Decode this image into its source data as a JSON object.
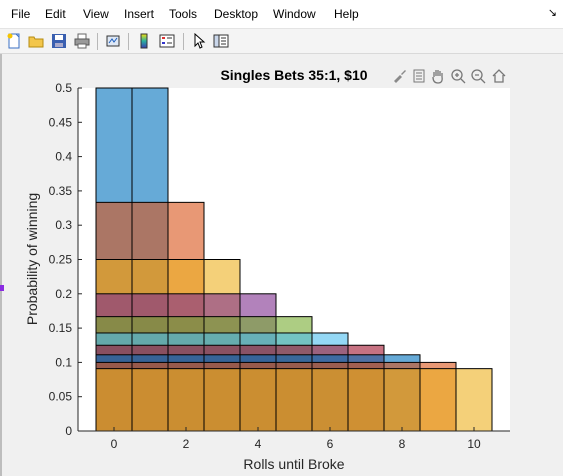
{
  "menu": {
    "items": [
      "File",
      "Edit",
      "View",
      "Insert",
      "Tools",
      "Desktop",
      "Window",
      "Help"
    ],
    "arrow": "↘"
  },
  "toolbar": {
    "icons": [
      "new-figure-icon",
      "open-file-icon",
      "save-icon",
      "print-icon",
      "link-plot-icon",
      "insert-colorbar-icon",
      "insert-legend-icon",
      "pointer-icon",
      "property-inspector-icon"
    ]
  },
  "axes_toolbar": {
    "icons": [
      "brush-icon",
      "data-tips-icon",
      "pan-icon",
      "zoom-in-icon",
      "zoom-out-icon",
      "home-icon"
    ]
  },
  "chart_data": {
    "type": "bar",
    "title": "Singles Bets 35:1, $10",
    "xlabel": "Rolls until Broke",
    "ylabel": "Probability of winning",
    "xlim": [
      -1,
      11
    ],
    "ylim": [
      0,
      0.5
    ],
    "xticks": [
      0,
      2,
      4,
      6,
      8,
      10
    ],
    "yticks": [
      0,
      0.05,
      0.1,
      0.15,
      0.2,
      0.25,
      0.3,
      0.35,
      0.4,
      0.45,
      0.5
    ],
    "ytick_labels": [
      "0",
      "0.05",
      "0.1",
      "0.15",
      "0.2",
      "0.25",
      "0.3",
      "0.35",
      "0.4",
      "0.45",
      "0.5"
    ],
    "bar_width": 1,
    "face_alpha": 0.6,
    "grid": false,
    "legend": "none",
    "series": [
      {
        "x": [
          0,
          1
        ],
        "values": [
          0.5,
          0.5
        ],
        "color": "#0072BD"
      },
      {
        "x": [
          0,
          1,
          2
        ],
        "values": [
          0.3333,
          0.3333,
          0.3333
        ],
        "color": "#D95319"
      },
      {
        "x": [
          0,
          1,
          2,
          3
        ],
        "values": [
          0.25,
          0.25,
          0.25,
          0.25
        ],
        "color": "#EDB120"
      },
      {
        "x": [
          0,
          1,
          2,
          3,
          4
        ],
        "values": [
          0.2,
          0.2,
          0.2,
          0.2,
          0.2
        ],
        "color": "#7E2F8E"
      },
      {
        "x": [
          0,
          1,
          2,
          3,
          4,
          5
        ],
        "values": [
          0.1667,
          0.1667,
          0.1667,
          0.1667,
          0.1667,
          0.1667
        ],
        "color": "#77AC30"
      },
      {
        "x": [
          0,
          1,
          2,
          3,
          4,
          5,
          6
        ],
        "values": [
          0.1429,
          0.1429,
          0.1429,
          0.1429,
          0.1429,
          0.1429,
          0.1429
        ],
        "color": "#4DBEEE"
      },
      {
        "x": [
          0,
          1,
          2,
          3,
          4,
          5,
          6,
          7
        ],
        "values": [
          0.125,
          0.125,
          0.125,
          0.125,
          0.125,
          0.125,
          0.125,
          0.125
        ],
        "color": "#A2142F"
      },
      {
        "x": [
          0,
          1,
          2,
          3,
          4,
          5,
          6,
          7,
          8
        ],
        "values": [
          0.1111,
          0.1111,
          0.1111,
          0.1111,
          0.1111,
          0.1111,
          0.1111,
          0.1111,
          0.1111
        ],
        "color": "#0072BD"
      },
      {
        "x": [
          0,
          1,
          2,
          3,
          4,
          5,
          6,
          7,
          8,
          9
        ],
        "values": [
          0.1,
          0.1,
          0.1,
          0.1,
          0.1,
          0.1,
          0.1,
          0.1,
          0.1,
          0.1
        ],
        "color": "#D95319"
      },
      {
        "x": [
          0,
          1,
          2,
          3,
          4,
          5,
          6,
          7,
          8,
          9,
          10
        ],
        "values": [
          0.0909,
          0.0909,
          0.0909,
          0.0909,
          0.0909,
          0.0909,
          0.0909,
          0.0909,
          0.0909,
          0.0909,
          0.0909
        ],
        "color": "#EDB120"
      }
    ]
  }
}
